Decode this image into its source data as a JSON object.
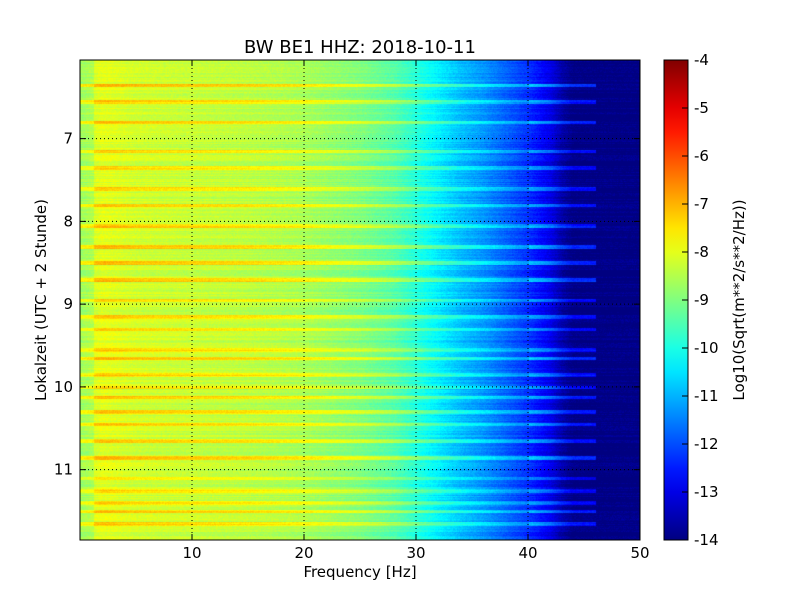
{
  "chart_data": {
    "type": "heatmap",
    "title": "BW BE1 HHZ: 2018-10-11",
    "xlabel": "Frequency [Hz]",
    "ylabel": "Lokalzeit (UTC + 2 Stunde)",
    "xlim": [
      0,
      50
    ],
    "ylim": [
      11.85,
      6.05
    ],
    "y_inverted": true,
    "x_ticks": [
      "10",
      "20",
      "30",
      "40",
      "50"
    ],
    "y_ticks": [
      "7",
      "8",
      "9",
      "10",
      "11"
    ],
    "grid": true,
    "colormap": "jet",
    "colorbar": {
      "label": "Log10(Sqrt(m**2/s**2/Hz))",
      "range": [
        -14,
        -4
      ],
      "ticks": [
        "-4",
        "-5",
        "-6",
        "-7",
        "-8",
        "-9",
        "-10",
        "-11",
        "-12",
        "-13",
        "-14"
      ]
    },
    "spectral_profile": {
      "frequency_hz": [
        0,
        2,
        5,
        10,
        15,
        20,
        25,
        28,
        30,
        32,
        34,
        36,
        38,
        40,
        42,
        43,
        44,
        45,
        50
      ],
      "log_amplitude": [
        -8.3,
        -8.0,
        -8.2,
        -8.3,
        -8.4,
        -8.6,
        -9.0,
        -9.4,
        -9.9,
        -10.4,
        -10.9,
        -11.3,
        -11.8,
        -12.3,
        -13.0,
        -13.6,
        -14.0,
        -14.0,
        -14.0
      ]
    },
    "noise_bands_hour": [
      6.35,
      6.55,
      6.8,
      7.15,
      7.35,
      7.6,
      7.8,
      8.05,
      8.3,
      8.5,
      8.7,
      8.95,
      9.15,
      9.3,
      9.55,
      9.65,
      9.85,
      10.0,
      10.12,
      10.3,
      10.45,
      10.65,
      10.85,
      11.1,
      11.25,
      11.4,
      11.5,
      11.65
    ]
  }
}
